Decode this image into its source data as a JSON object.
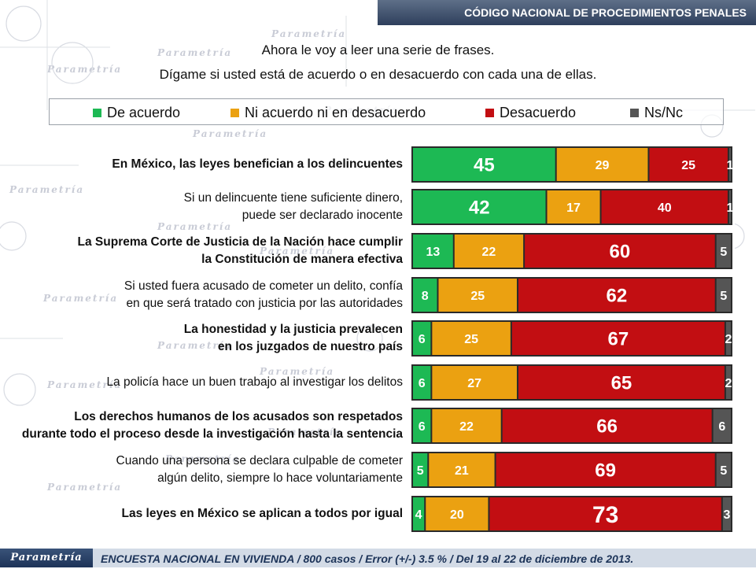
{
  "header": {
    "title": "CÓDIGO NACIONAL DE PROCEDIMIENTOS PENALES"
  },
  "intro": {
    "line1": "Ahora le voy a leer una serie de frases.",
    "line2": "Dígame si usted está de acuerdo o en desacuerdo  con cada una de ellas."
  },
  "footer": {
    "logo": "Parametría",
    "note": "ENCUESTA NACIONAL EN VIVIENDA / 800 casos / Error (+/-) 3.5 % / Del 19 al 22 de diciembre de 2013."
  },
  "watermark": "Parametría",
  "colors": {
    "agree": "#1db954",
    "neutral": "#eba111",
    "disagree": "#c20e12",
    "nsnc": "#555555"
  },
  "chart_data": {
    "type": "bar",
    "orientation": "horizontal",
    "stacked": true,
    "xlim": [
      0,
      100
    ],
    "legend_position": "top",
    "categories": [
      "En México, las leyes benefician a los delincuentes",
      "Si un delincuente tiene suficiente dinero, puede ser declarado inocente",
      "La Suprema Corte de Justicia de la Nación hace cumplir la Constitución de manera efectiva",
      "Si usted fuera acusado de cometer un delito, confía en que será tratado con justicia por las autoridades",
      "La honestidad y la justicia prevalecen en los juzgados de nuestro país",
      "La policía hace un buen trabajo al investigar los delitos",
      "Los derechos humanos de los acusados son respetados durante todo el proceso desde la investigación hasta la sentencia",
      "Cuando una persona se declara culpable de cometer algún delito, siempre lo hace voluntariamente",
      "Las leyes en México se aplican a todos por igual"
    ],
    "category_lines": [
      [
        "En México, las leyes benefician a los delincuentes"
      ],
      [
        "Si un delincuente tiene suficiente dinero,",
        "puede ser declarado inocente"
      ],
      [
        "La Suprema Corte de Justicia de la Nación hace cumplir",
        "la Constitución de manera efectiva"
      ],
      [
        "Si usted fuera acusado de cometer un delito, confía",
        "en que será tratado con justicia por las autoridades"
      ],
      [
        "La honestidad y la justicia prevalecen",
        "en los juzgados de nuestro país"
      ],
      [
        "La policía hace un buen trabajo al investigar los delitos"
      ],
      [
        "Los derechos humanos de los acusados son respetados",
        "durante todo el proceso desde la investigación hasta la sentencia"
      ],
      [
        "Cuando una persona se declara culpable de cometer",
        "algún delito, siempre lo hace voluntariamente"
      ],
      [
        "Las leyes en México se aplican a todos por igual"
      ]
    ],
    "bold_categories": [
      true,
      false,
      true,
      false,
      true,
      false,
      true,
      false,
      true
    ],
    "series": [
      {
        "name": "De acuerdo",
        "values": [
          45,
          42,
          13,
          8,
          6,
          6,
          6,
          5,
          4
        ]
      },
      {
        "name": "Ni acuerdo ni en desacuerdo",
        "values": [
          29,
          17,
          22,
          25,
          25,
          27,
          22,
          21,
          20
        ]
      },
      {
        "name": "Desacuerdo",
        "values": [
          25,
          40,
          60,
          62,
          67,
          65,
          66,
          69,
          73
        ]
      },
      {
        "name": "Ns/Nc",
        "values": [
          1,
          1,
          5,
          5,
          2,
          2,
          6,
          5,
          3
        ]
      }
    ]
  }
}
